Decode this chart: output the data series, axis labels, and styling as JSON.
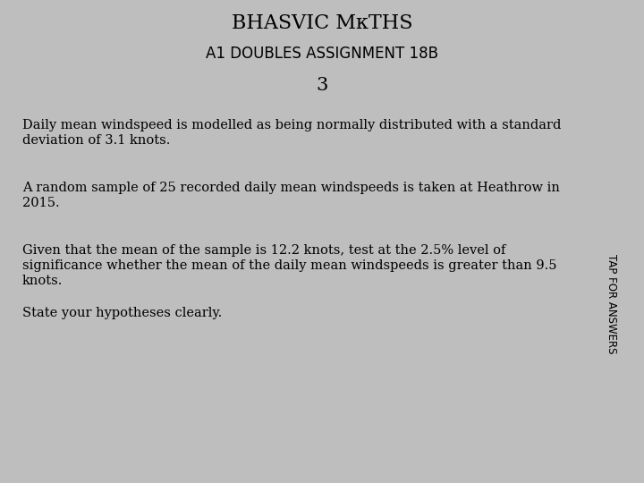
{
  "title_line1": "BHASVIC MκTHS",
  "title_line2": "A1 DOUBLES ASSIGNMENT 18B",
  "question_number": "3",
  "header_bg": "#FFBC00",
  "header_text_color": "#000000",
  "body_bg": "#BEBEBE",
  "white_box_bg": "#FFFFFF",
  "tab_bg": "#FFBC00",
  "tab_text": "TAP FOR ANSWERS",
  "tab_text_color": "#000000",
  "para1_line1": "Daily mean windspeed is modelled as being normally distributed with a standard",
  "para1_line2": "deviation of 3.1 knots.",
  "para2_line1": "A random sample of 25 recorded daily mean windspeeds is taken at Heathrow in",
  "para2_line2": "2015.",
  "para3_line1": "Given that the mean of the sample is 12.2 knots, test at the 2.5% level of",
  "para3_line2": "significance whether the mean of the daily mean windspeeds is greater than 9.5",
  "para3_line3": "knots.",
  "para4_line1": "State your hypotheses clearly.",
  "body_font_size": 10.5,
  "title_font_size": 16,
  "subtitle_font_size": 12,
  "number_font_size": 15
}
